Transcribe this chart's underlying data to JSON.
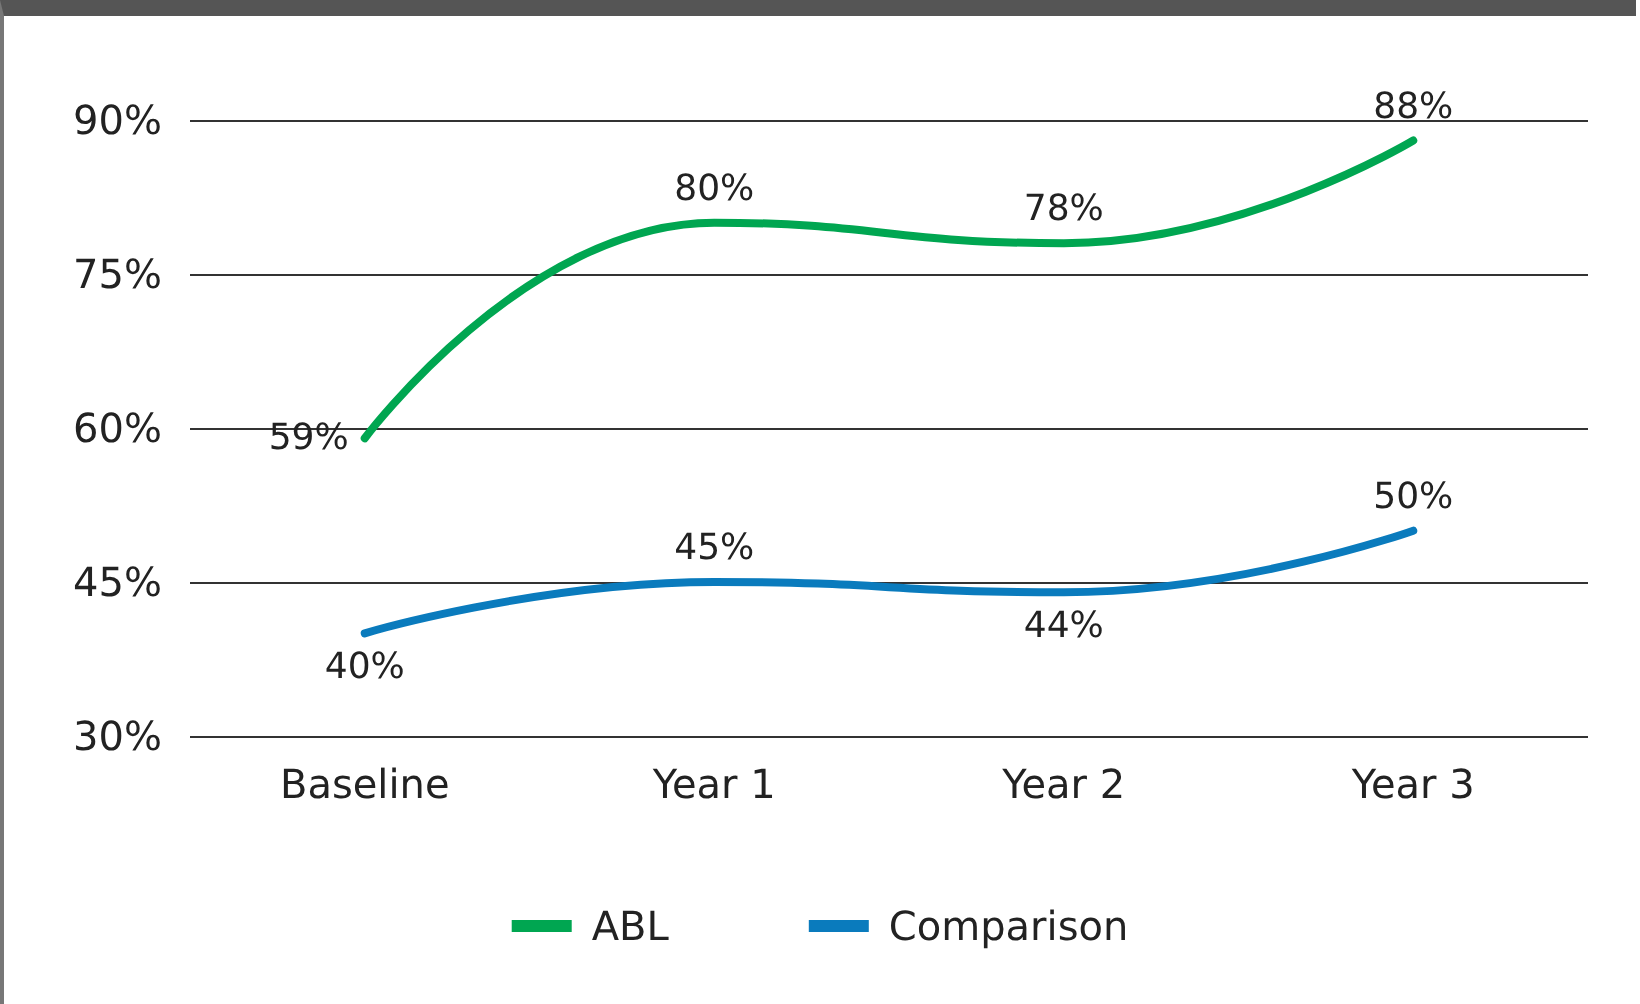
{
  "chart_data": {
    "type": "line",
    "categories": [
      "Baseline",
      "Year 1",
      "Year 2",
      "Year 3"
    ],
    "series": [
      {
        "name": "ABL",
        "color": "#00a651",
        "values": [
          59,
          80,
          78,
          88
        ],
        "value_labels": [
          "59%",
          "80%",
          "78%",
          "88%"
        ]
      },
      {
        "name": "Comparison",
        "color": "#0a7bbd",
        "values": [
          40,
          45,
          44,
          50
        ],
        "value_labels": [
          "40%",
          "45%",
          "44%",
          "50%"
        ]
      }
    ],
    "ylim": [
      30,
      90
    ],
    "yticks": [
      {
        "value": 30,
        "label": "30%"
      },
      {
        "value": 45,
        "label": "45%"
      },
      {
        "value": 60,
        "label": "60%"
      },
      {
        "value": 75,
        "label": "75%"
      },
      {
        "value": 90,
        "label": "90%"
      }
    ],
    "grid": "y",
    "legend": "bottom",
    "marker": "none",
    "line_style": "solid"
  }
}
